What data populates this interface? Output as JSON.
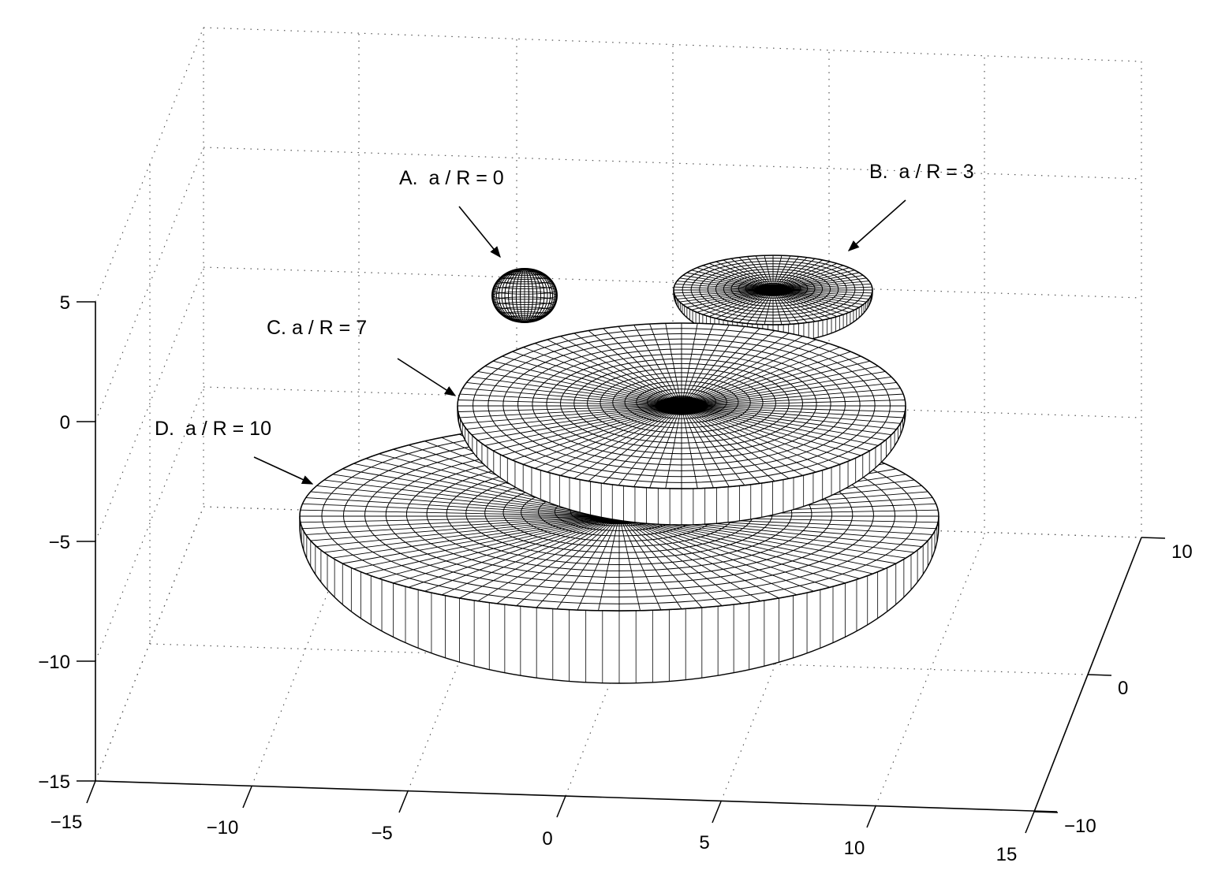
{
  "chart_data": {
    "type": "surface",
    "title": "",
    "xlabel": "",
    "ylabel": "",
    "zlabel": "",
    "xlim": [
      -15,
      15
    ],
    "ylim": [
      -10,
      10
    ],
    "zlim": [
      -15,
      5
    ],
    "xticks": [
      "−15",
      "−10",
      "−5",
      "0",
      "5",
      "10",
      "15"
    ],
    "yticks": [
      "−10",
      "0",
      "10"
    ],
    "zticks": [
      "5",
      "0",
      "−5",
      "−10",
      "−15"
    ],
    "grid": true,
    "surfaces": [
      {
        "label": "A.  a / R = 0",
        "a_over_R": 0,
        "shape": "sphere"
      },
      {
        "label": "B.  a / R = 3",
        "a_over_R": 3,
        "shape": "oblate spheroid"
      },
      {
        "label": "C. a / R = 7",
        "a_over_R": 7,
        "shape": "oblate spheroid"
      },
      {
        "label": "D.  a / R = 10",
        "a_over_R": 10,
        "shape": "oblate spheroid"
      }
    ],
    "colors": {
      "line": "#000000",
      "grid": "#555555",
      "face": "#ffffff"
    }
  }
}
